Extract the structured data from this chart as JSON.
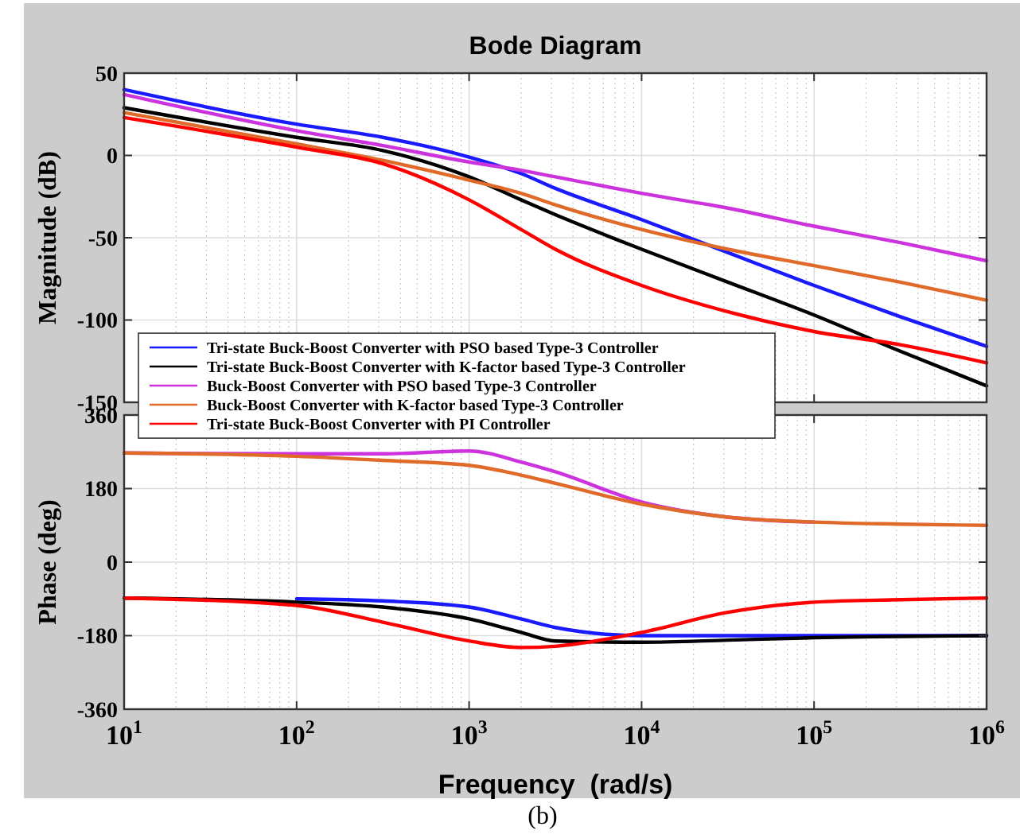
{
  "chart_data": [
    {
      "type": "line",
      "title": "Bode Diagram",
      "ylabel": "Magnitude (dB)",
      "x": [
        10,
        100,
        316,
        1000,
        2000,
        3162,
        10000,
        31623,
        100000,
        316228,
        1000000
      ],
      "series": [
        {
          "name": "Tri-state Buck-Boost Converter with PSO based Type-3 Controller",
          "color": "#1a1aff",
          "values": [
            40,
            19,
            11,
            -1,
            -11,
            -20,
            -39,
            -59,
            -79,
            -98,
            -116
          ]
        },
        {
          "name": "Tri-state Buck-Boost Converter with K-factor based Type-3 Controller",
          "color": "#000000",
          "values": [
            29,
            11,
            3,
            -13,
            -27,
            -36,
            -57,
            -77,
            -97,
            -119,
            -140
          ]
        },
        {
          "name": "Buck-Boost Converter with PSO based Type-3 Controller",
          "color": "#cc33dd",
          "values": [
            37,
            15,
            6,
            -4,
            -9,
            -13,
            -23,
            -32,
            -43,
            -53,
            -64
          ]
        },
        {
          "name": "Buck-Boost Converter with K-factor based Type-3 Controller",
          "color": "#e06a2a",
          "values": [
            26,
            7,
            -3,
            -15,
            -23,
            -30,
            -45,
            -57,
            -67,
            -77,
            -88
          ]
        },
        {
          "name": "Tri-state Buck-Boost Converter with PI Controller",
          "color": "#ff0000",
          "values": [
            23,
            5,
            -5,
            -27,
            -45,
            -57,
            -79,
            -95,
            -107,
            -115,
            -126
          ]
        }
      ],
      "log": "x",
      "xlim": [
        10,
        1000000
      ],
      "xticks": [
        10,
        100,
        1000,
        10000,
        100000,
        1000000
      ],
      "ylim": [
        -150,
        50
      ],
      "yticks": [
        50,
        0,
        -50,
        -100,
        -150
      ],
      "grid": true,
      "legend": "bottom left",
      "tick_labels": "y"
    },
    {
      "type": "line",
      "ylabel": "Phase (deg)",
      "xlabel": "Frequency  (rad/s)",
      "x": [
        10,
        100,
        316,
        1000,
        2000,
        3162,
        10000,
        31623,
        100000,
        316228,
        1000000
      ],
      "series": [
        {
          "color": "#1a1aff",
          "values": [
            null,
            -90,
            -95,
            -110,
            -139,
            -160,
            -180,
            -180,
            -180,
            -180,
            -180
          ]
        },
        {
          "color": "#000000",
          "values": [
            -88,
            -98,
            -110,
            -139,
            -172,
            -193,
            -196,
            -191,
            -185,
            -182,
            -180
          ]
        },
        {
          "color": "#cc33dd",
          "values": [
            267,
            265,
            265,
            272,
            245,
            221,
            147,
            110,
            98,
            null,
            null
          ]
        },
        {
          "color": "#e06a2a",
          "values": [
            267,
            259,
            249,
            237,
            213,
            193,
            142,
            110,
            98,
            93,
            90
          ]
        },
        {
          "color": "#ff0000",
          "values": [
            -88,
            -106,
            -147,
            -193,
            -209,
            -206,
            -172,
            -123,
            -98,
            -92,
            -88
          ]
        }
      ],
      "log": "x",
      "xlim": [
        10,
        1000000
      ],
      "xticks": [
        {
          "value": 10,
          "label": "10$^{1}$"
        },
        {
          "value": 100,
          "label": "10$^{2}$"
        },
        {
          "value": 1000,
          "label": "10$^{3}$"
        },
        {
          "value": 10000,
          "label": "10$^{4}$"
        },
        {
          "value": 100000,
          "label": "10$^{5}$"
        },
        {
          "value": 1000000,
          "label": "10$^{6}$"
        }
      ],
      "ylim": [
        -360,
        360
      ],
      "yticks": [
        360,
        180,
        0,
        -180,
        -360
      ],
      "grid": true,
      "annotations": [
        "(b)"
      ]
    }
  ]
}
